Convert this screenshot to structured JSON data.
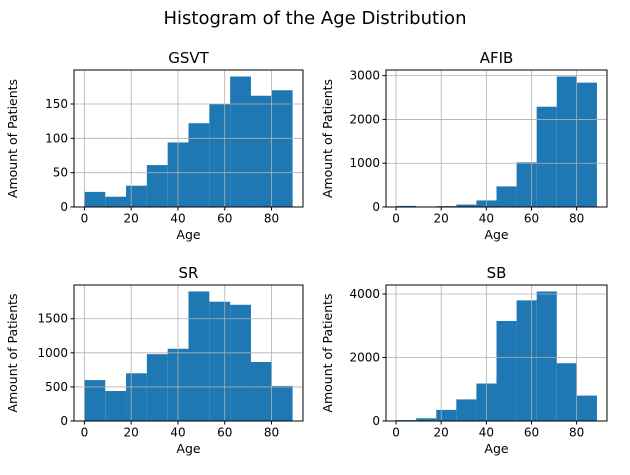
{
  "title": "Histogram of the Age Distribution",
  "style": {
    "bar_color": "#1f77b4",
    "grid_color": "#b0b0b0",
    "spine_color": "#000000",
    "text_color": "#000000",
    "background": "#ffffff"
  },
  "chart_data": [
    {
      "type": "bar",
      "variant": "histogram",
      "title": "GSVT",
      "xlabel": "Age",
      "ylabel": "Amount of Patients",
      "bin_start": 0,
      "bin_width": 8.9,
      "values": [
        22,
        15,
        31,
        61,
        94,
        122,
        150,
        190,
        162,
        170
      ],
      "xticks": [
        0,
        20,
        40,
        60,
        80
      ],
      "yticks": [
        0,
        50,
        100,
        150
      ],
      "xlim": [
        -4.45,
        93.45
      ],
      "ylim": [
        0,
        199.5
      ],
      "grid": true,
      "legend": "none"
    },
    {
      "type": "bar",
      "variant": "histogram",
      "title": "AFIB",
      "xlabel": "Age",
      "ylabel": "Amount of Patients",
      "bin_start": 0,
      "bin_width": 8.9,
      "values": [
        25,
        5,
        20,
        55,
        150,
        470,
        1020,
        2290,
        2980,
        2840
      ],
      "xticks": [
        0,
        20,
        40,
        60,
        80
      ],
      "yticks": [
        0,
        1000,
        2000,
        3000
      ],
      "xlim": [
        -4.45,
        93.45
      ],
      "ylim": [
        0,
        3129
      ],
      "grid": true,
      "legend": "none"
    },
    {
      "type": "bar",
      "variant": "histogram",
      "title": "SR",
      "xlabel": "Age",
      "ylabel": "Amount of Patients",
      "bin_start": 0,
      "bin_width": 8.9,
      "values": [
        600,
        440,
        700,
        980,
        1060,
        1900,
        1750,
        1705,
        865,
        515
      ],
      "xticks": [
        0,
        20,
        40,
        60,
        80
      ],
      "yticks": [
        0,
        500,
        1000,
        1500
      ],
      "xlim": [
        -4.45,
        93.45
      ],
      "ylim": [
        0,
        1995
      ],
      "grid": true,
      "legend": "none"
    },
    {
      "type": "bar",
      "variant": "histogram",
      "title": "SB",
      "xlabel": "Age",
      "ylabel": "Amount of Patients",
      "bin_start": 0,
      "bin_width": 8.9,
      "values": [
        30,
        85,
        350,
        680,
        1180,
        3150,
        3800,
        4080,
        1820,
        800
      ],
      "xticks": [
        0,
        20,
        40,
        60,
        80
      ],
      "yticks": [
        0,
        2000,
        4000
      ],
      "xlim": [
        -4.45,
        93.45
      ],
      "ylim": [
        0,
        4284
      ],
      "grid": true,
      "legend": "none"
    }
  ]
}
